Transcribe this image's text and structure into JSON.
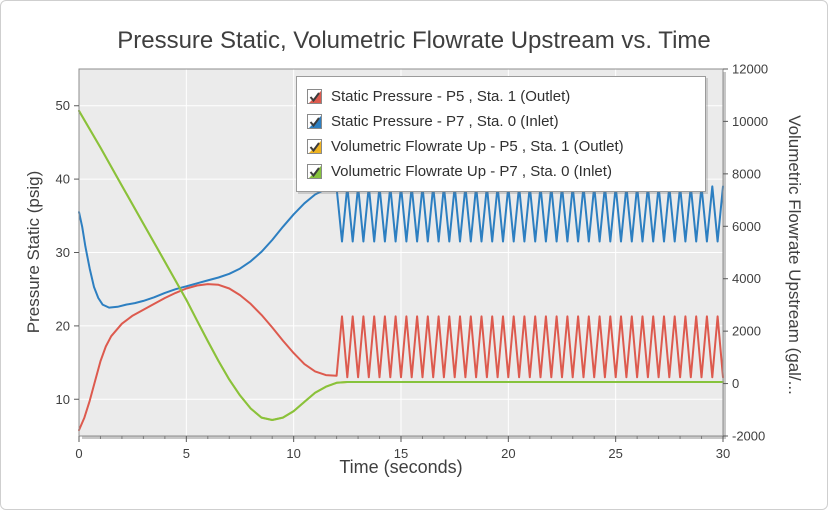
{
  "chart_data": {
    "type": "line",
    "title": "Pressure Static, Volumetric Flowrate Upstream vs. Time",
    "grid": true,
    "legend_position": "top-center",
    "x": {
      "label": "Time (seconds)",
      "min": 0,
      "max": 30,
      "ticks": [
        0,
        5,
        10,
        15,
        20,
        25,
        30
      ],
      "minor_tick_step": 1
    },
    "y_left": {
      "label": "Pressure Static (psig)",
      "min": 5,
      "max": 55,
      "ticks": [
        10,
        20,
        30,
        40,
        50
      ]
    },
    "y_right": {
      "label": "Volumetric Flowrate Upstream (gal/...",
      "min": -2000,
      "max": 12000,
      "ticks": [
        -2000,
        0,
        2000,
        4000,
        6000,
        8000,
        10000,
        12000
      ]
    },
    "plot_colors": {
      "plot_background": "#ebebeb",
      "gridline": "#ffffff",
      "border": "#8e8e8e"
    },
    "series": [
      {
        "name": "Static Pressure - P5 , Sta. 1 (Outlet)",
        "color": "#dd5a4e",
        "axis": "left",
        "points": [
          [
            0,
            5.8
          ],
          [
            0.25,
            7.5
          ],
          [
            0.5,
            9.8
          ],
          [
            0.75,
            12.5
          ],
          [
            1,
            15.2
          ],
          [
            1.25,
            17.2
          ],
          [
            1.5,
            18.6
          ],
          [
            2,
            20.3
          ],
          [
            2.5,
            21.4
          ],
          [
            3,
            22.2
          ],
          [
            3.5,
            23.0
          ],
          [
            4,
            23.8
          ],
          [
            4.5,
            24.5
          ],
          [
            5,
            25.1
          ],
          [
            5.5,
            25.5
          ],
          [
            6,
            25.7
          ],
          [
            6.5,
            25.6
          ],
          [
            7,
            25.1
          ],
          [
            7.5,
            24.2
          ],
          [
            8,
            23.0
          ],
          [
            8.5,
            21.5
          ],
          [
            9,
            19.8
          ],
          [
            9.5,
            18.0
          ],
          [
            10,
            16.3
          ],
          [
            10.5,
            14.8
          ],
          [
            11,
            13.8
          ],
          [
            11.5,
            13.3
          ],
          [
            12,
            13.2
          ]
        ],
        "oscillation": {
          "from": 12.25,
          "to": 30,
          "min": 13.0,
          "max": 21.3,
          "period": 0.5,
          "start": "max"
        }
      },
      {
        "name": "Static Pressure - P7 , Sta. 0 (Inlet)",
        "color": "#2d7fc1",
        "axis": "left",
        "points": [
          [
            0,
            35.5
          ],
          [
            0.15,
            33.5
          ],
          [
            0.3,
            30.8
          ],
          [
            0.5,
            27.8
          ],
          [
            0.7,
            25.3
          ],
          [
            0.9,
            23.8
          ],
          [
            1.1,
            22.9
          ],
          [
            1.4,
            22.5
          ],
          [
            1.8,
            22.6
          ],
          [
            2.2,
            22.9
          ],
          [
            2.6,
            23.1
          ],
          [
            3,
            23.4
          ],
          [
            3.5,
            23.9
          ],
          [
            4,
            24.5
          ],
          [
            4.5,
            25.0
          ],
          [
            5,
            25.4
          ],
          [
            5.5,
            25.8
          ],
          [
            6,
            26.2
          ],
          [
            6.5,
            26.6
          ],
          [
            7,
            27.1
          ],
          [
            7.5,
            27.8
          ],
          [
            8,
            28.8
          ],
          [
            8.5,
            30.1
          ],
          [
            9,
            31.7
          ],
          [
            9.5,
            33.5
          ],
          [
            10,
            35.2
          ],
          [
            10.5,
            36.7
          ],
          [
            11,
            37.9
          ],
          [
            11.4,
            38.5
          ],
          [
            11.7,
            38.8
          ],
          [
            12,
            38.8
          ]
        ],
        "oscillation": {
          "from": 12.25,
          "to": 30,
          "min": 31.5,
          "max": 39.0,
          "period": 0.5,
          "start": "min"
        }
      },
      {
        "name": "Volumetric Flowrate Up - P5 , Sta. 1 (Outlet)",
        "color": "#eeb320",
        "axis": "right",
        "points": [
          [
            0,
            10400
          ],
          [
            1,
            9000
          ],
          [
            2,
            7550
          ],
          [
            3,
            6100
          ],
          [
            4,
            4650
          ],
          [
            5,
            3200
          ],
          [
            5.5,
            2400
          ],
          [
            6,
            1620
          ],
          [
            6.5,
            860
          ],
          [
            7,
            150
          ],
          [
            7.5,
            -450
          ],
          [
            8,
            -950
          ],
          [
            8.5,
            -1300
          ],
          [
            9,
            -1390
          ],
          [
            9.5,
            -1300
          ],
          [
            10,
            -1050
          ],
          [
            10.5,
            -700
          ],
          [
            11,
            -350
          ],
          [
            11.5,
            -120
          ],
          [
            12,
            30
          ],
          [
            12.5,
            60
          ],
          [
            30,
            60
          ]
        ]
      },
      {
        "name": "Volumetric Flowrate Up - P7 , Sta. 0 (Inlet)",
        "color": "#86c33d",
        "axis": "right",
        "points": [
          [
            0,
            10400
          ],
          [
            1,
            9000
          ],
          [
            2,
            7550
          ],
          [
            3,
            6100
          ],
          [
            4,
            4650
          ],
          [
            5,
            3200
          ],
          [
            5.5,
            2400
          ],
          [
            6,
            1620
          ],
          [
            6.5,
            860
          ],
          [
            7,
            150
          ],
          [
            7.5,
            -450
          ],
          [
            8,
            -950
          ],
          [
            8.5,
            -1300
          ],
          [
            9,
            -1390
          ],
          [
            9.5,
            -1300
          ],
          [
            10,
            -1050
          ],
          [
            10.5,
            -700
          ],
          [
            11,
            -350
          ],
          [
            11.5,
            -120
          ],
          [
            12,
            30
          ],
          [
            12.5,
            60
          ],
          [
            30,
            60
          ]
        ]
      }
    ]
  }
}
